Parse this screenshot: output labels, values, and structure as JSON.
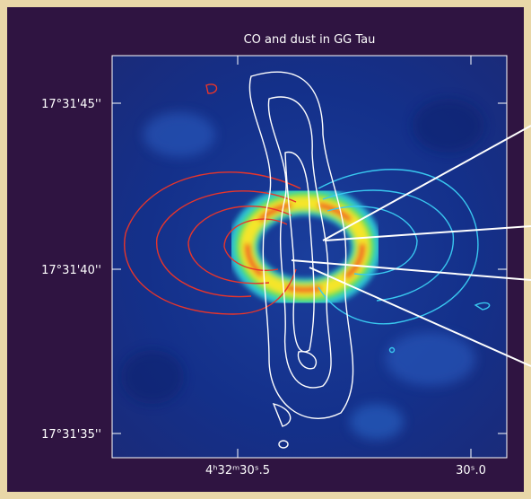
{
  "title": "CO and dust in GG Tau",
  "y_tick_labels": [
    "17°31'45''",
    "17°31'40''",
    "17°31'35''"
  ],
  "x_tick_labels": [
    "4ʰ32ᵐ30ˢ.5",
    "30ˢ.0"
  ]
}
